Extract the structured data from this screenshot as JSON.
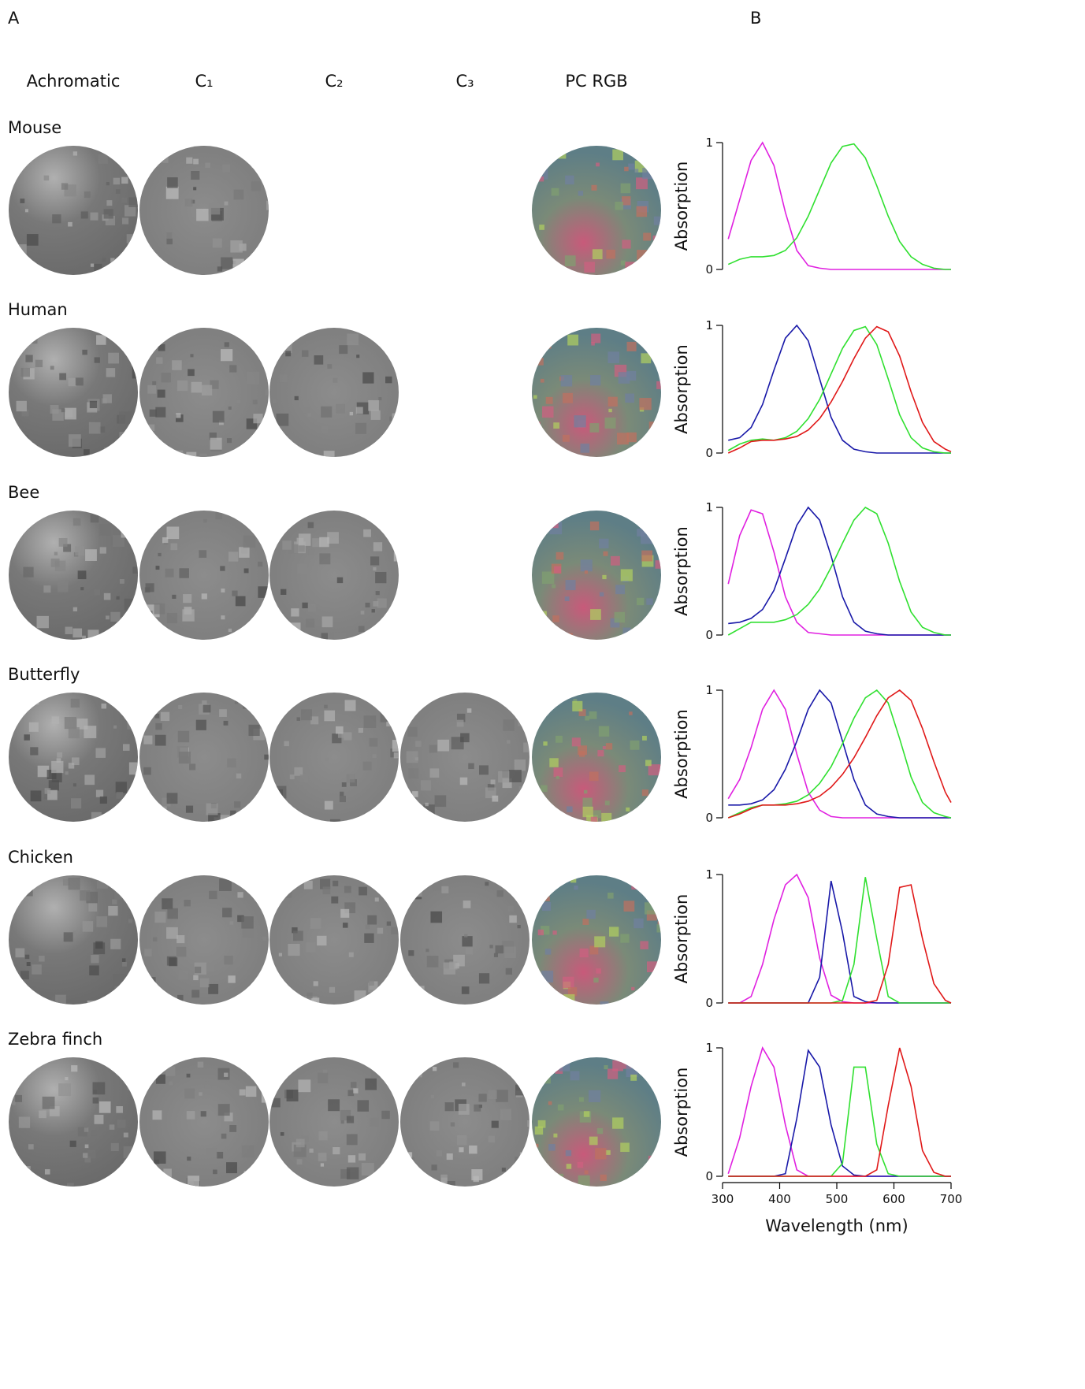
{
  "panel_labels": [
    "A",
    "B"
  ],
  "column_headers": [
    "Achromatic",
    "C₁",
    "C₂",
    "C₃",
    "PC RGB"
  ],
  "rows": [
    "Mouse",
    "Human",
    "Bee",
    "Butterfly",
    "Chicken",
    "Zebra finch"
  ],
  "chart_data": [
    {
      "type": "line",
      "ylabel": "Absorption",
      "xlim": [
        300,
        700
      ],
      "ylim": [
        0,
        1
      ],
      "yticks": [
        0,
        1
      ],
      "x": [
        310,
        330,
        350,
        370,
        390,
        410,
        430,
        450,
        470,
        490,
        510,
        530,
        550,
        570,
        590,
        610,
        630,
        650,
        670,
        690,
        700
      ],
      "series": [
        {
          "color": "#e020e0",
          "values": [
            0.24,
            0.55,
            0.86,
            1.0,
            0.82,
            0.45,
            0.15,
            0.03,
            0.01,
            0,
            0,
            0,
            0,
            0,
            0,
            0,
            0,
            0,
            0,
            0,
            0
          ]
        },
        {
          "color": "#30e030",
          "values": [
            0.04,
            0.08,
            0.1,
            0.1,
            0.11,
            0.15,
            0.25,
            0.42,
            0.63,
            0.84,
            0.97,
            0.99,
            0.88,
            0.66,
            0.42,
            0.22,
            0.1,
            0.04,
            0.01,
            0,
            0
          ]
        }
      ]
    },
    {
      "type": "line",
      "ylabel": "Absorption",
      "xlim": [
        300,
        700
      ],
      "ylim": [
        0,
        1
      ],
      "yticks": [
        0,
        1
      ],
      "x": [
        310,
        330,
        350,
        370,
        390,
        410,
        430,
        450,
        470,
        490,
        510,
        530,
        550,
        570,
        590,
        610,
        630,
        650,
        670,
        690,
        700
      ],
      "series": [
        {
          "color": "#1818a8",
          "values": [
            0.1,
            0.12,
            0.2,
            0.38,
            0.65,
            0.9,
            1.0,
            0.88,
            0.58,
            0.28,
            0.1,
            0.03,
            0.01,
            0,
            0,
            0,
            0,
            0,
            0,
            0,
            0
          ]
        },
        {
          "color": "#30e030",
          "values": [
            0.02,
            0.07,
            0.1,
            0.11,
            0.1,
            0.12,
            0.17,
            0.27,
            0.42,
            0.62,
            0.82,
            0.96,
            0.99,
            0.85,
            0.58,
            0.3,
            0.12,
            0.04,
            0.01,
            0,
            0
          ]
        },
        {
          "color": "#e01818",
          "values": [
            0,
            0.04,
            0.09,
            0.1,
            0.1,
            0.11,
            0.13,
            0.18,
            0.27,
            0.4,
            0.56,
            0.74,
            0.9,
            0.99,
            0.95,
            0.76,
            0.48,
            0.24,
            0.09,
            0.03,
            0.01
          ]
        }
      ]
    },
    {
      "type": "line",
      "ylabel": "Absorption",
      "xlim": [
        300,
        700
      ],
      "ylim": [
        0,
        1
      ],
      "yticks": [
        0,
        1
      ],
      "x": [
        310,
        330,
        350,
        370,
        390,
        410,
        430,
        450,
        470,
        490,
        510,
        530,
        550,
        570,
        590,
        610,
        630,
        650,
        670,
        690,
        700
      ],
      "series": [
        {
          "color": "#e020e0",
          "values": [
            0.4,
            0.78,
            0.98,
            0.95,
            0.65,
            0.3,
            0.1,
            0.02,
            0.01,
            0,
            0,
            0,
            0,
            0,
            0,
            0,
            0,
            0,
            0,
            0,
            0
          ]
        },
        {
          "color": "#1818a8",
          "values": [
            0.09,
            0.1,
            0.13,
            0.2,
            0.35,
            0.6,
            0.86,
            1.0,
            0.9,
            0.62,
            0.3,
            0.1,
            0.03,
            0.01,
            0,
            0,
            0,
            0,
            0,
            0,
            0
          ]
        },
        {
          "color": "#30e030",
          "values": [
            0,
            0.05,
            0.1,
            0.1,
            0.1,
            0.12,
            0.16,
            0.24,
            0.36,
            0.53,
            0.72,
            0.9,
            1.0,
            0.95,
            0.72,
            0.42,
            0.18,
            0.06,
            0.02,
            0,
            0
          ]
        }
      ]
    },
    {
      "type": "line",
      "ylabel": "Absorption",
      "xlim": [
        300,
        700
      ],
      "ylim": [
        0,
        1
      ],
      "yticks": [
        0,
        1
      ],
      "x": [
        310,
        330,
        350,
        370,
        390,
        410,
        430,
        450,
        470,
        490,
        510,
        530,
        550,
        570,
        590,
        610,
        630,
        650,
        670,
        690,
        700
      ],
      "series": [
        {
          "color": "#e020e0",
          "values": [
            0.15,
            0.3,
            0.55,
            0.85,
            1.0,
            0.85,
            0.5,
            0.2,
            0.06,
            0.01,
            0,
            0,
            0,
            0,
            0,
            0,
            0,
            0,
            0,
            0,
            0
          ]
        },
        {
          "color": "#1818a8",
          "values": [
            0.1,
            0.1,
            0.11,
            0.14,
            0.22,
            0.38,
            0.6,
            0.85,
            1.0,
            0.9,
            0.6,
            0.3,
            0.1,
            0.03,
            0.01,
            0,
            0,
            0,
            0,
            0,
            0
          ]
        },
        {
          "color": "#30e030",
          "values": [
            0,
            0.04,
            0.08,
            0.1,
            0.1,
            0.11,
            0.13,
            0.18,
            0.27,
            0.4,
            0.58,
            0.78,
            0.94,
            1.0,
            0.9,
            0.62,
            0.32,
            0.12,
            0.04,
            0.01,
            0
          ]
        },
        {
          "color": "#e01818",
          "values": [
            0,
            0.03,
            0.07,
            0.1,
            0.1,
            0.1,
            0.11,
            0.13,
            0.17,
            0.24,
            0.34,
            0.47,
            0.63,
            0.8,
            0.94,
            1.0,
            0.92,
            0.7,
            0.44,
            0.2,
            0.12
          ]
        }
      ]
    },
    {
      "type": "line",
      "ylabel": "Absorption",
      "xlim": [
        300,
        700
      ],
      "ylim": [
        0,
        1
      ],
      "yticks": [
        0,
        1
      ],
      "x": [
        310,
        330,
        350,
        370,
        390,
        410,
        430,
        450,
        470,
        490,
        510,
        530,
        550,
        570,
        590,
        610,
        630,
        650,
        670,
        690,
        700
      ],
      "series": [
        {
          "color": "#e020e0",
          "values": [
            0,
            0,
            0.05,
            0.3,
            0.65,
            0.92,
            1.0,
            0.82,
            0.35,
            0.06,
            0.01,
            0,
            0,
            0,
            0,
            0,
            0,
            0,
            0,
            0,
            0
          ]
        },
        {
          "color": "#1818a8",
          "values": [
            0,
            0,
            0,
            0,
            0,
            0,
            0,
            0,
            0.2,
            0.95,
            0.55,
            0.05,
            0.01,
            0,
            0,
            0,
            0,
            0,
            0,
            0,
            0
          ]
        },
        {
          "color": "#30e030",
          "values": [
            0,
            0,
            0,
            0,
            0,
            0,
            0,
            0,
            0,
            0,
            0.02,
            0.3,
            0.98,
            0.5,
            0.05,
            0,
            0,
            0,
            0,
            0,
            0
          ]
        },
        {
          "color": "#e01818",
          "values": [
            0,
            0,
            0,
            0,
            0,
            0,
            0,
            0,
            0,
            0,
            0,
            0,
            0,
            0.02,
            0.3,
            0.9,
            0.92,
            0.5,
            0.15,
            0.02,
            0
          ]
        }
      ]
    },
    {
      "type": "line",
      "ylabel": "Absorption",
      "xlabel": "Wavelength (nm)",
      "xlim": [
        300,
        700
      ],
      "ylim": [
        0,
        1
      ],
      "yticks": [
        0,
        1
      ],
      "xticks": [
        300,
        400,
        500,
        600,
        700
      ],
      "x": [
        310,
        330,
        350,
        370,
        390,
        410,
        430,
        450,
        470,
        490,
        510,
        530,
        550,
        570,
        590,
        610,
        630,
        650,
        670,
        690,
        700
      ],
      "series": [
        {
          "color": "#e020e0",
          "values": [
            0.02,
            0.3,
            0.7,
            1.0,
            0.85,
            0.4,
            0.05,
            0,
            0,
            0,
            0,
            0,
            0,
            0,
            0,
            0,
            0,
            0,
            0,
            0,
            0
          ]
        },
        {
          "color": "#1818a8",
          "values": [
            0,
            0,
            0,
            0,
            0,
            0.02,
            0.45,
            0.98,
            0.85,
            0.4,
            0.08,
            0.01,
            0,
            0,
            0,
            0,
            0,
            0,
            0,
            0,
            0
          ]
        },
        {
          "color": "#30e030",
          "values": [
            0,
            0,
            0,
            0,
            0,
            0,
            0,
            0,
            0,
            0,
            0.1,
            0.85,
            0.85,
            0.25,
            0.02,
            0,
            0,
            0,
            0,
            0,
            0
          ]
        },
        {
          "color": "#e01818",
          "values": [
            0,
            0,
            0,
            0,
            0,
            0,
            0,
            0,
            0,
            0,
            0,
            0,
            0,
            0.05,
            0.55,
            1.0,
            0.7,
            0.2,
            0.03,
            0,
            0
          ]
        }
      ]
    }
  ]
}
